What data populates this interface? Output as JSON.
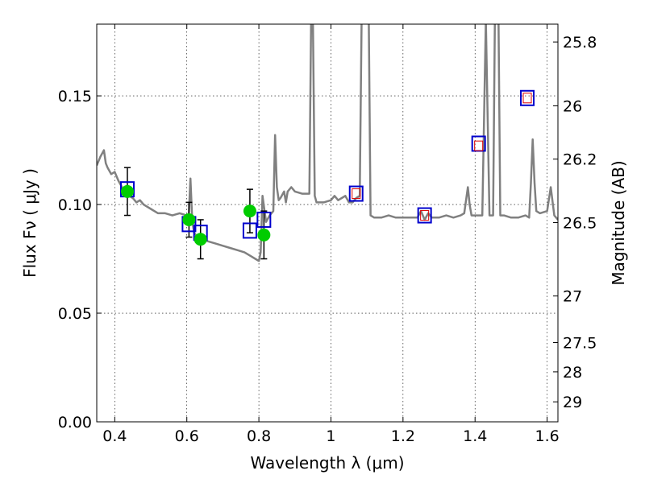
{
  "chart_data": {
    "type": "scatter",
    "xlabel": "Wavelength  λ (μm)",
    "ylabel": "Flux  Fν  ( μJy )",
    "ylabel_right": "Magnitude (AB)",
    "xlim": [
      0.35,
      1.63
    ],
    "ylim": [
      0.0,
      0.183
    ],
    "grid": true,
    "x_ticks": [
      0.4,
      0.6,
      0.8,
      1.0,
      1.2,
      1.4,
      1.6
    ],
    "x_tick_labels": [
      "0.4",
      "0.6",
      "0.8",
      "1",
      "1.2",
      "1.4",
      "1.6"
    ],
    "y_ticks": [
      0.0,
      0.05,
      0.1,
      0.15
    ],
    "y_tick_labels": [
      "0.00",
      "0.05",
      "0.10",
      "0.15"
    ],
    "right_ticks": [
      {
        "label": "25.8",
        "flux": 0.1748
      },
      {
        "label": "26",
        "flux": 0.1454
      },
      {
        "label": "26.2",
        "flux": 0.1209
      },
      {
        "label": "26.5",
        "flux": 0.0917
      },
      {
        "label": "27",
        "flux": 0.0579
      },
      {
        "label": "27.5",
        "flux": 0.0365
      },
      {
        "label": "28",
        "flux": 0.023
      },
      {
        "label": "29",
        "flux": 0.0092
      }
    ],
    "series": [
      {
        "kind": "model_spectrum",
        "color": "#808080",
        "x": [
          0.35,
          0.36,
          0.37,
          0.375,
          0.38,
          0.39,
          0.4,
          0.41,
          0.42,
          0.43,
          0.44,
          0.45,
          0.46,
          0.47,
          0.48,
          0.5,
          0.52,
          0.54,
          0.56,
          0.58,
          0.6,
          0.605,
          0.61,
          0.615,
          0.62,
          0.63,
          0.64,
          0.66,
          0.68,
          0.7,
          0.72,
          0.74,
          0.76,
          0.78,
          0.79,
          0.8,
          0.805,
          0.81,
          0.82,
          0.83,
          0.84,
          0.845,
          0.85,
          0.855,
          0.86,
          0.87,
          0.875,
          0.88,
          0.89,
          0.9,
          0.92,
          0.94,
          0.945,
          0.95,
          0.955,
          0.96,
          0.98,
          1.0,
          1.01,
          1.02,
          1.03,
          1.04,
          1.05,
          1.06,
          1.07,
          1.08,
          1.085,
          1.09,
          1.1,
          1.105,
          1.11,
          1.12,
          1.14,
          1.16,
          1.18,
          1.2,
          1.22,
          1.24,
          1.25,
          1.26,
          1.27,
          1.28,
          1.3,
          1.32,
          1.34,
          1.36,
          1.37,
          1.38,
          1.385,
          1.39,
          1.4,
          1.42,
          1.43,
          1.44,
          1.45,
          1.455,
          1.46,
          1.465,
          1.47,
          1.475,
          1.48,
          1.5,
          1.52,
          1.54,
          1.55,
          1.555,
          1.56,
          1.565,
          1.57,
          1.58,
          1.6,
          1.61,
          1.62,
          1.63
        ],
        "y": [
          0.118,
          0.122,
          0.125,
          0.119,
          0.117,
          0.114,
          0.115,
          0.111,
          0.108,
          0.105,
          0.104,
          0.103,
          0.101,
          0.102,
          0.1,
          0.098,
          0.096,
          0.096,
          0.095,
          0.096,
          0.095,
          0.094,
          0.112,
          0.093,
          0.087,
          0.085,
          0.084,
          0.083,
          0.082,
          0.081,
          0.08,
          0.079,
          0.078,
          0.076,
          0.075,
          0.074,
          0.078,
          0.104,
          0.092,
          0.095,
          0.097,
          0.132,
          0.108,
          0.102,
          0.103,
          0.106,
          0.101,
          0.106,
          0.108,
          0.106,
          0.105,
          0.105,
          0.185,
          0.185,
          0.104,
          0.101,
          0.101,
          0.102,
          0.104,
          0.102,
          0.103,
          0.104,
          0.101,
          0.101,
          0.103,
          0.104,
          0.185,
          0.185,
          0.185,
          0.185,
          0.095,
          0.094,
          0.094,
          0.095,
          0.094,
          0.094,
          0.094,
          0.094,
          0.097,
          0.093,
          0.096,
          0.094,
          0.094,
          0.095,
          0.094,
          0.095,
          0.096,
          0.108,
          0.1,
          0.095,
          0.095,
          0.095,
          0.185,
          0.095,
          0.095,
          0.185,
          0.185,
          0.185,
          0.095,
          0.095,
          0.095,
          0.094,
          0.094,
          0.095,
          0.094,
          0.11,
          0.13,
          0.11,
          0.097,
          0.096,
          0.097,
          0.108,
          0.095,
          0.093
        ]
      },
      {
        "kind": "observed_photometry",
        "color": "#00cc00",
        "marker": "circle",
        "points": [
          {
            "x": 0.435,
            "y": 0.106,
            "yerr": 0.011
          },
          {
            "x": 0.606,
            "y": 0.093,
            "yerr": 0.008
          },
          {
            "x": 0.638,
            "y": 0.084,
            "yerr": 0.009
          },
          {
            "x": 0.775,
            "y": 0.097,
            "yerr": 0.01
          },
          {
            "x": 0.814,
            "y": 0.086,
            "yerr": 0.011
          }
        ]
      },
      {
        "kind": "model_photometry",
        "color": "#0000cc",
        "marker": "square",
        "points": [
          {
            "x": 0.435,
            "y": 0.107
          },
          {
            "x": 0.606,
            "y": 0.091
          },
          {
            "x": 0.638,
            "y": 0.087
          },
          {
            "x": 0.775,
            "y": 0.088
          },
          {
            "x": 0.814,
            "y": 0.093
          },
          {
            "x": 1.07,
            "y": 0.105
          },
          {
            "x": 1.26,
            "y": 0.095
          },
          {
            "x": 1.41,
            "y": 0.128
          },
          {
            "x": 1.545,
            "y": 0.149
          }
        ]
      },
      {
        "kind": "upper_limit_points",
        "color": "#dd0000",
        "marker": "small-square",
        "points": [
          {
            "x": 1.07,
            "y": 0.105
          },
          {
            "x": 1.26,
            "y": 0.095
          },
          {
            "x": 1.41,
            "y": 0.127
          },
          {
            "x": 1.545,
            "y": 0.149
          }
        ]
      }
    ]
  }
}
